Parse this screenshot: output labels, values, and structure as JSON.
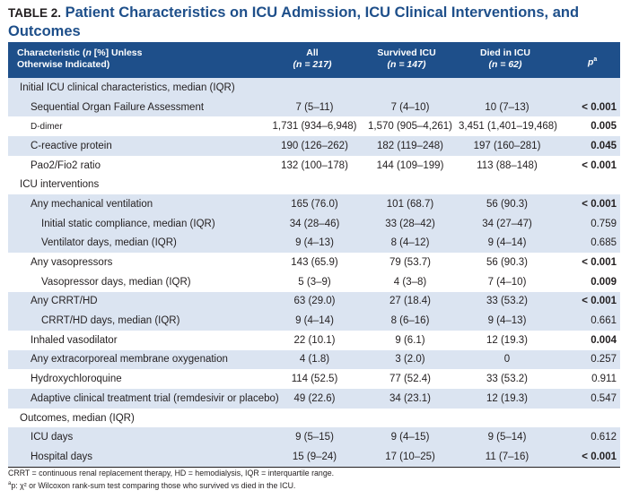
{
  "title": {
    "label": "TABLE 2.",
    "text": "Patient Characteristics on ICU Admission, ICU Clinical Interventions, and Outcomes"
  },
  "columns": {
    "characteristic": {
      "line1": "Characteristic (",
      "n_italic": "n",
      "line1b": " [%] Unless",
      "line2": "Otherwise Indicated)"
    },
    "all": {
      "name": "All",
      "n": "(n = 217)"
    },
    "survived": {
      "name": "Survived ICU",
      "n": "(n = 147)"
    },
    "died": {
      "name": "Died in ICU",
      "n": "(n = 62)"
    },
    "p": {
      "name": "p",
      "sup": "a"
    }
  },
  "rows": [
    {
      "label": "Initial ICU clinical characteristics, median (IQR)",
      "type": "section",
      "shade": true
    },
    {
      "label": "Sequential Organ Failure Assessment",
      "level": 1,
      "all": "7 (5–11)",
      "survived": "7 (4–10)",
      "died": "10 (7–13)",
      "p": "< 0.001",
      "bold": true,
      "shade": true
    },
    {
      "label": "D-dimer",
      "level": 1,
      "all": "1,731 (934–6,948)",
      "survived": "1,570 (905–4,261)",
      "died": "3,451 (1,401–19,468)",
      "p": "0.005",
      "bold": true,
      "shade": false,
      "smallcaps": true
    },
    {
      "label": "C-reactive protein",
      "level": 1,
      "all": "190 (126–262)",
      "survived": "182 (119–248)",
      "died": "197 (160–281)",
      "p": "0.045",
      "bold": true,
      "shade": true
    },
    {
      "label": "Pao2/Fio2 ratio",
      "level": 1,
      "all": "132 (100–178)",
      "survived": "144 (109–199)",
      "died": "113 (88–148)",
      "p": "< 0.001",
      "bold": true,
      "shade": false
    },
    {
      "label": "ICU interventions",
      "type": "section",
      "shade": false
    },
    {
      "label": "Any mechanical ventilation",
      "level": 1,
      "all": "165 (76.0)",
      "survived": "101 (68.7)",
      "died": "56 (90.3)",
      "p": "< 0.001",
      "bold": true,
      "shade": true
    },
    {
      "label": "Initial static compliance, median (IQR)",
      "level": 2,
      "all": "34 (28–46)",
      "survived": "33 (28–42)",
      "died": "34 (27–47)",
      "p": "0.759",
      "bold": false,
      "shade": true
    },
    {
      "label": "Ventilator days, median (IQR)",
      "level": 2,
      "all": "9 (4–13)",
      "survived": "8 (4–12)",
      "died": "9 (4–14)",
      "p": "0.685",
      "bold": false,
      "shade": true
    },
    {
      "label": "Any vasopressors",
      "level": 1,
      "all": "143 (65.9)",
      "survived": "79 (53.7)",
      "died": "56 (90.3)",
      "p": "< 0.001",
      "bold": true,
      "shade": false
    },
    {
      "label": "Vasopressor days, median (IQR)",
      "level": 2,
      "all": "5 (3–9)",
      "survived": "4 (3–8)",
      "died": "7 (4–10)",
      "p": "0.009",
      "bold": true,
      "shade": false
    },
    {
      "label": "Any CRRT/HD",
      "level": 1,
      "all": "63 (29.0)",
      "survived": "27 (18.4)",
      "died": "33 (53.2)",
      "p": "< 0.001",
      "bold": true,
      "shade": true
    },
    {
      "label": "CRRT/HD days, median (IQR)",
      "level": 2,
      "all": "9 (4–14)",
      "survived": "8 (6–16)",
      "died": "9 (4–13)",
      "p": "0.661",
      "bold": false,
      "shade": true
    },
    {
      "label": "Inhaled vasodilator",
      "level": 1,
      "all": "22 (10.1)",
      "survived": "9 (6.1)",
      "died": "12 (19.3)",
      "p": "0.004",
      "bold": true,
      "shade": false
    },
    {
      "label": "Any extracorporeal membrane oxygenation",
      "level": 1,
      "all": "4 (1.8)",
      "survived": "3 (2.0)",
      "died": "0",
      "p": "0.257",
      "bold": false,
      "shade": true
    },
    {
      "label": "Hydroxychloroquine",
      "level": 1,
      "all": "114 (52.5)",
      "survived": "77 (52.4)",
      "died": "33 (53.2)",
      "p": "0.911",
      "bold": false,
      "shade": false
    },
    {
      "label": "Adaptive clinical treatment trial (remdesivir or placebo)",
      "level": 1,
      "all": "49 (22.6)",
      "survived": "34 (23.1)",
      "died": "12 (19.3)",
      "p": "0.547",
      "bold": false,
      "shade": true
    },
    {
      "label": "Outcomes, median (IQR)",
      "type": "section",
      "shade": false
    },
    {
      "label": "ICU days",
      "level": 1,
      "all": "9 (5–15)",
      "survived": "9 (4–15)",
      "died": "9 (5–14)",
      "p": "0.612",
      "bold": false,
      "shade": true
    },
    {
      "label": "Hospital days",
      "level": 1,
      "all": "15 (9–24)",
      "survived": "17 (10–25)",
      "died": "11 (7–16)",
      "p": "< 0.001",
      "bold": true,
      "shade": true
    }
  ],
  "footnotes": {
    "abbrev": "CRRT = continuous renal replacement therapy, HD = hemodialysis, IQR = interquartile range.",
    "a": "p: χ² or Wilcoxon rank-sum test comparing those who survived vs died in the ICU."
  }
}
